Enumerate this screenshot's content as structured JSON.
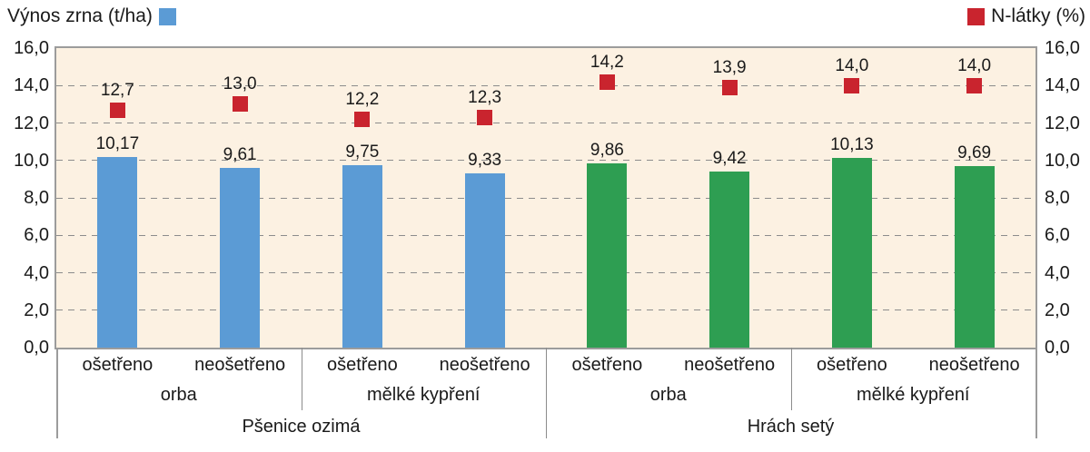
{
  "chart_data": {
    "type": "bar",
    "legend_position": "top",
    "grid": true,
    "plot_background": "#fcf1e2",
    "axes": {
      "left": {
        "label": "Výnos zrna (t/ha)",
        "min": 0,
        "max": 16,
        "step": 2,
        "ticks": [
          "0,0",
          "2,0",
          "4,0",
          "6,0",
          "8,0",
          "10,0",
          "12,0",
          "14,0",
          "16,0"
        ]
      },
      "right": {
        "label": "N-látky (%)",
        "min": 0,
        "max": 16,
        "step": 2,
        "ticks": [
          "0,0",
          "2,0",
          "4,0",
          "6,0",
          "8,0",
          "10,0",
          "12,0",
          "14,0",
          "16,0"
        ]
      }
    },
    "series": [
      {
        "name": "Výnos zrna (t/ha)",
        "type": "bar",
        "values": [
          10.17,
          9.61,
          9.75,
          9.33,
          9.86,
          9.42,
          10.13,
          9.69
        ],
        "labels": [
          "10,17",
          "9,61",
          "9,75",
          "9,33",
          "9,86",
          "9,42",
          "10,13",
          "9,69"
        ],
        "colors": [
          "#5b9bd5",
          "#5b9bd5",
          "#5b9bd5",
          "#5b9bd5",
          "#2e9e52",
          "#2e9e52",
          "#2e9e52",
          "#2e9e52"
        ]
      },
      {
        "name": "N-látky (%)",
        "type": "scatter-square",
        "values": [
          12.7,
          13.0,
          12.2,
          12.3,
          14.2,
          13.9,
          14.0,
          14.0
        ],
        "labels": [
          "12,7",
          "13,0",
          "12,2",
          "12,3",
          "14,2",
          "13,9",
          "14,0",
          "14,0"
        ],
        "color": "#c9242e"
      }
    ],
    "categories": {
      "treatment": [
        "ošetřeno",
        "neošetřeno",
        "ošetřeno",
        "neošetřeno",
        "ošetřeno",
        "neošetřeno",
        "ošetřeno",
        "neošetřeno"
      ],
      "tillage": [
        "orba",
        "mělké kypření",
        "orba",
        "mělké kypření"
      ],
      "crop": [
        "Pšenice ozimá",
        "Hrách setý"
      ]
    },
    "colors": {
      "wheat_bar": "#5b9bd5",
      "pea_bar": "#2e9e52",
      "n_marker": "#c9242e",
      "grid": "#8c8c8c",
      "plot_border": "#9c9c9c",
      "text": "#1a1a1a"
    }
  }
}
